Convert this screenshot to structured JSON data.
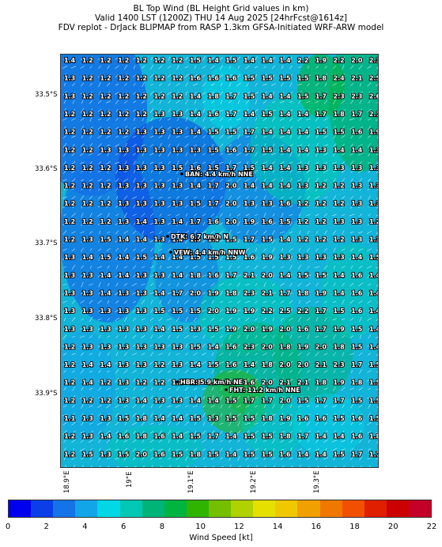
{
  "header": {
    "line1": "BL Top Wind (BL Height Grid values in km)",
    "line2": "Valid 1400 LST (1200Z) THU 14 Aug 2025 [24hrFcst@1614z]",
    "line3": "FDV replot - DrJack BLIPMAP from RASP 1.3km GFSA-Initiated WRF-ARW model"
  },
  "lat_labels": [
    "33.5°S",
    "33.6°S",
    "33.7°S",
    "33.8°S",
    "33.9°S"
  ],
  "lon_labels": [
    "18.9°E",
    "19°E",
    "19.1°E",
    "19.2°E",
    "19.3°E"
  ],
  "grid_values": [
    [
      "1.4",
      "1.2",
      "1.2",
      "1.2",
      "1.2",
      "1.2",
      "1.2",
      "1.5",
      "1.4",
      "1.5",
      "1.4",
      "1.4",
      "1.4",
      "2.2",
      "1.9",
      "2.2",
      "2.0",
      "2.3"
    ],
    [
      "1.3",
      "1.2",
      "1.2",
      "1.2",
      "1.2",
      "1.2",
      "1.2",
      "1.6",
      "1.6",
      "1.6",
      "1.5",
      "1.5",
      "1.5",
      "1.5",
      "1.8",
      "2.4",
      "2.1",
      "2.5"
    ],
    [
      "1.3",
      "1.2",
      "1.2",
      "1.2",
      "1.2",
      "1.2",
      "1.2",
      "1.4",
      "1.8",
      "1.7",
      "1.5",
      "1.4",
      "1.4",
      "1.5",
      "1.7",
      "2.3",
      "2.3",
      "2.6"
    ],
    [
      "1.2",
      "1.2",
      "1.2",
      "1.2",
      "1.2",
      "1.3",
      "1.3",
      "1.4",
      "1.6",
      "1.7",
      "1.4",
      "1.5",
      "1.4",
      "1.4",
      "1.7",
      "1.8",
      "1.7",
      "2.1"
    ],
    [
      "1.2",
      "1.2",
      "1.2",
      "1.2",
      "1.3",
      "1.3",
      "1.3",
      "1.4",
      "1.5",
      "1.5",
      "1.7",
      "1.4",
      "1.4",
      "1.4",
      "1.5",
      "1.5",
      "1.6",
      "1.9"
    ],
    [
      "1.2",
      "1.2",
      "1.3",
      "1.3",
      "1.3",
      "1.3",
      "1.3",
      "1.3",
      "1.5",
      "1.6",
      "1.7",
      "1.5",
      "1.4",
      "1.4",
      "1.3",
      "1.4",
      "1.4",
      "1.3"
    ],
    [
      "1.2",
      "1.2",
      "1.2",
      "1.3",
      "1.3",
      "1.3",
      "1.5",
      "1.6",
      "1.5",
      "1.7",
      "1.5",
      "1.4",
      "1.4",
      "1.3",
      "1.3",
      "1.3",
      "1.3",
      "1.3"
    ],
    [
      "1.2",
      "1.2",
      "1.2",
      "1.3",
      "1.3",
      "1.3",
      "1.3",
      "1.4",
      "1.7",
      "2.0",
      "1.4",
      "1.4",
      "1.4",
      "1.3",
      "1.2",
      "1.2",
      "1.3",
      "1.3"
    ],
    [
      "1.2",
      "1.2",
      "1.2",
      "1.3",
      "1.3",
      "1.3",
      "1.3",
      "1.5",
      "1.7",
      "2.0",
      "1.3",
      "1.3",
      "1.6",
      "1.2",
      "1.2",
      "1.2",
      "1.3",
      "1.3"
    ],
    [
      "1.2",
      "1.2",
      "1.2",
      "1.3",
      "1.4",
      "1.3",
      "1.4",
      "1.7",
      "1.6",
      "2.0",
      "1.9",
      "1.6",
      "1.5",
      "1.2",
      "1.2",
      "1.3",
      "1.3",
      "1.2"
    ],
    [
      "1.2",
      "1.3",
      "1.5",
      "1.4",
      "1.4",
      "1.3",
      "1.4",
      "1.5",
      "1.4",
      "1.5",
      "1.7",
      "1.5",
      "1.4",
      "1.2",
      "1.2",
      "1.2",
      "1.3",
      "1.3"
    ],
    [
      "1.3",
      "1.4",
      "1.5",
      "1.4",
      "1.5",
      "1.4",
      "1.4",
      "1.5",
      "1.5",
      "1.5",
      "1.6",
      "1.9",
      "1.3",
      "1.3",
      "1.3",
      "1.3",
      "1.4",
      "1.5"
    ],
    [
      "1.3",
      "1.3",
      "1.4",
      "1.4",
      "1.3",
      "1.3",
      "1.4",
      "1.8",
      "1.6",
      "1.7",
      "2.1",
      "2.0",
      "1.4",
      "1.5",
      "1.5",
      "1.4",
      "1.6",
      "1.4"
    ],
    [
      "1.3",
      "1.3",
      "1.4",
      "1.3",
      "1.3",
      "1.4",
      "1.7",
      "2.0",
      "1.9",
      "1.8",
      "2.3",
      "2.1",
      "1.7",
      "1.8",
      "1.9",
      "1.4",
      "1.6",
      "1.4"
    ],
    [
      "1.3",
      "1.3",
      "1.3",
      "1.3",
      "1.3",
      "1.5",
      "1.5",
      "1.5",
      "2.0",
      "1.9",
      "1.9",
      "2.2",
      "2.5",
      "2.2",
      "1.7",
      "1.5",
      "1.6",
      "1.4"
    ],
    [
      "1.3",
      "1.3",
      "1.3",
      "1.3",
      "1.3",
      "1.4",
      "1.5",
      "1.3",
      "1.5",
      "1.9",
      "2.0",
      "1.9",
      "2.0",
      "1.6",
      "1.7",
      "1.9",
      "1.5",
      "1.4"
    ],
    [
      "1.2",
      "1.3",
      "1.3",
      "1.3",
      "1.3",
      "1.3",
      "1.3",
      "1.5",
      "1.4",
      "1.6",
      "2.3",
      "2.0",
      "1.8",
      "1.9",
      "2.0",
      "1.8",
      "1.5",
      "1.4"
    ],
    [
      "1.2",
      "1.4",
      "1.4",
      "1.3",
      "1.3",
      "1.2",
      "1.3",
      "1.4",
      "1.5",
      "1.6",
      "1.4",
      "1.8",
      "2.0",
      "2.0",
      "2.1",
      "2.3",
      "1.7",
      "1.5"
    ],
    [
      "1.2",
      "1.4",
      "1.2",
      "1.3",
      "1.2",
      "1.2",
      "1.2",
      "1.3",
      "1.5",
      "1.6",
      "1.6",
      "2.0",
      "2.1",
      "2.1",
      "1.8",
      "1.9",
      "1.8",
      "1.5"
    ],
    [
      "1.2",
      "1.2",
      "1.2",
      "1.3",
      "1.4",
      "1.3",
      "1.3",
      "1.4",
      "1.4",
      "1.5",
      "1.7",
      "1.7",
      "2.0",
      "1.5",
      "1.7",
      "1.7",
      "1.5",
      "1.5"
    ],
    [
      "1.1",
      "1.3",
      "1.3",
      "1.5",
      "1.8",
      "1.4",
      "1.4",
      "1.5",
      "1.3",
      "1.5",
      "1.5",
      "1.8",
      "1.9",
      "1.6",
      "1.6",
      "1.5",
      "1.6",
      "1.5"
    ],
    [
      "1.2",
      "1.3",
      "1.4",
      "1.6",
      "1.8",
      "1.6",
      "1.4",
      "1.5",
      "1.7",
      "1.4",
      "1.5",
      "1.5",
      "1.8",
      "1.7",
      "1.4",
      "1.4",
      "1.6",
      "1.8"
    ],
    [
      "1.2",
      "1.5",
      "1.3",
      "1.5",
      "2.0",
      "1.6",
      "1.5",
      "1.8",
      "1.5",
      "1.4",
      "1.5",
      "1.5",
      "1.6",
      "1.4",
      "1.4",
      "1.5",
      "1.7",
      "1.7"
    ]
  ],
  "sites": [
    {
      "label": "BAN: 4.4 km/h NNE"
    },
    {
      "label": "DTK: 6.7 km/h N"
    },
    {
      "label": "VEW: 4.4 km/h NNW"
    },
    {
      "label": "HBR: 5.9 km/h NE"
    },
    {
      "label": "FHT: 11.2 km/h NNE"
    }
  ],
  "colorbar": {
    "colors": [
      "#0000ee",
      "#0a3ee6",
      "#1473e6",
      "#12a5e8",
      "#00d8e6",
      "#00c8b4",
      "#00b478",
      "#00b440",
      "#30b400",
      "#74c000",
      "#b0d200",
      "#e6e000",
      "#f0c800",
      "#f0a000",
      "#f07800",
      "#f05000",
      "#e01e00",
      "#cc0000",
      "#c40028"
    ],
    "ticks": [
      "0",
      "2",
      "4",
      "6",
      "8",
      "10",
      "12",
      "14",
      "16",
      "18",
      "20",
      "22"
    ],
    "label": "Wind Speed [kt]"
  }
}
